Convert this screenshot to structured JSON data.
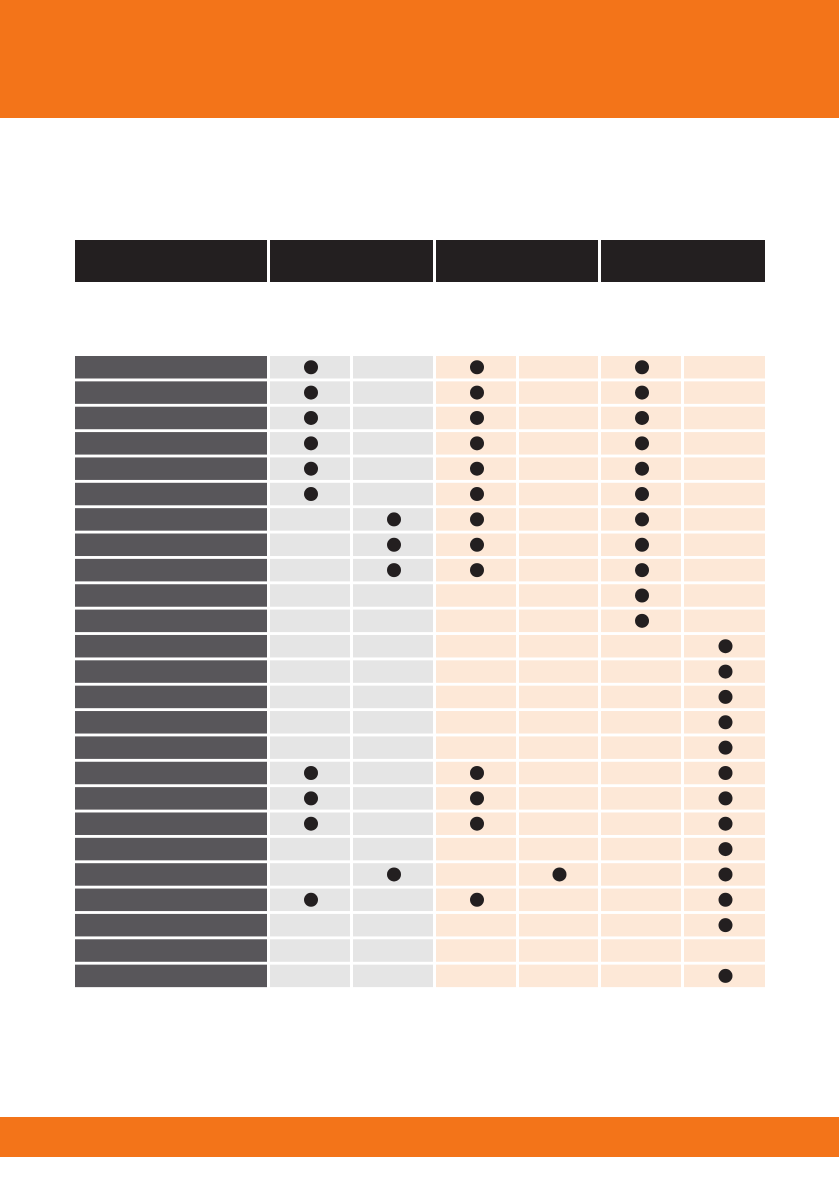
{
  "table": {
    "rows": [
      [
        true,
        false,
        true,
        false,
        true,
        false
      ],
      [
        true,
        false,
        true,
        false,
        true,
        false
      ],
      [
        true,
        false,
        true,
        false,
        true,
        false
      ],
      [
        true,
        false,
        true,
        false,
        true,
        false
      ],
      [
        true,
        false,
        true,
        false,
        true,
        false
      ],
      [
        true,
        false,
        true,
        false,
        true,
        false
      ],
      [
        false,
        true,
        true,
        false,
        true,
        false
      ],
      [
        false,
        true,
        true,
        false,
        true,
        false
      ],
      [
        false,
        true,
        true,
        false,
        true,
        false
      ],
      [
        false,
        false,
        false,
        false,
        true,
        false
      ],
      [
        false,
        false,
        false,
        false,
        true,
        false
      ],
      [
        false,
        false,
        false,
        false,
        false,
        true
      ],
      [
        false,
        false,
        false,
        false,
        false,
        true
      ],
      [
        false,
        false,
        false,
        false,
        false,
        true
      ],
      [
        false,
        false,
        false,
        false,
        false,
        true
      ],
      [
        false,
        false,
        false,
        false,
        false,
        true
      ],
      [
        true,
        false,
        true,
        false,
        false,
        true
      ],
      [
        true,
        false,
        true,
        false,
        false,
        true
      ],
      [
        true,
        false,
        true,
        false,
        false,
        true
      ],
      [
        false,
        false,
        false,
        false,
        false,
        true
      ],
      [
        false,
        true,
        false,
        true,
        false,
        true
      ],
      [
        true,
        false,
        true,
        false,
        false,
        true
      ],
      [
        false,
        false,
        false,
        false,
        false,
        true
      ],
      [
        false,
        false,
        false,
        false,
        false,
        false
      ],
      [
        false,
        false,
        false,
        false,
        false,
        true
      ]
    ]
  }
}
